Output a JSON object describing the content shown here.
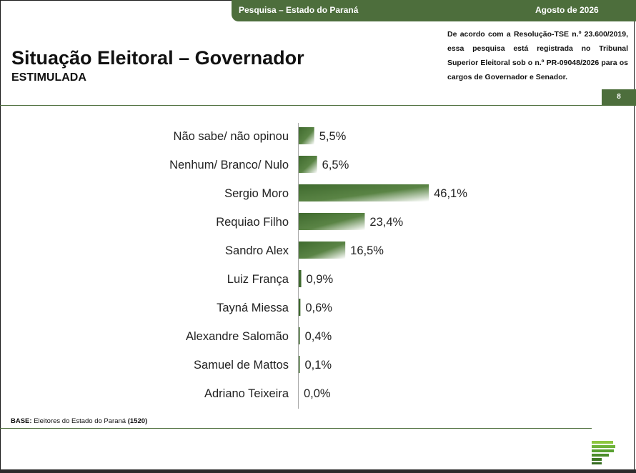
{
  "header": {
    "survey_label": "Pesquisa – Estado do Paraná",
    "date_label": "Agosto de 2026"
  },
  "title": "Situação Eleitoral – Governador",
  "subtitle": "ESTIMULADA",
  "legal_text": "De acordo com a Resolução-TSE n.º 23.600/2019, essa pesquisa está registrada no Tribunal Superior Eleitoral sob o n.º PR-09048/2026 para os cargos de Governador e Senador.",
  "page_number": "8",
  "base": {
    "label": "BASE:",
    "text": "Eleitores do Estado do Paraná",
    "count": "(1520)"
  },
  "colors": {
    "brand_green": "#4d6e3c",
    "bar_dark": "#3f6a2e",
    "bar_light": "#ffffff"
  },
  "chart_data": {
    "type": "bar",
    "orientation": "horizontal",
    "categories": [
      "Não sabe/ não opinou",
      "Nenhum/ Branco/ Nulo",
      "Sergio Moro",
      "Requiao Filho",
      "Sandro Alex",
      "Luiz França",
      "Tayná Miessa",
      "Alexandre Salomão",
      "Samuel de Mattos",
      "Adriano Teixeira"
    ],
    "values": [
      5.5,
      6.5,
      46.1,
      23.4,
      16.5,
      0.9,
      0.6,
      0.4,
      0.1,
      0.0
    ],
    "value_labels": [
      "5,5%",
      "6,5%",
      "46,1%",
      "23,4%",
      "16,5%",
      "0,9%",
      "0,6%",
      "0,4%",
      "0,1%",
      "0,0%"
    ],
    "xlim": [
      0,
      50
    ],
    "grid": false,
    "legend": "none"
  }
}
